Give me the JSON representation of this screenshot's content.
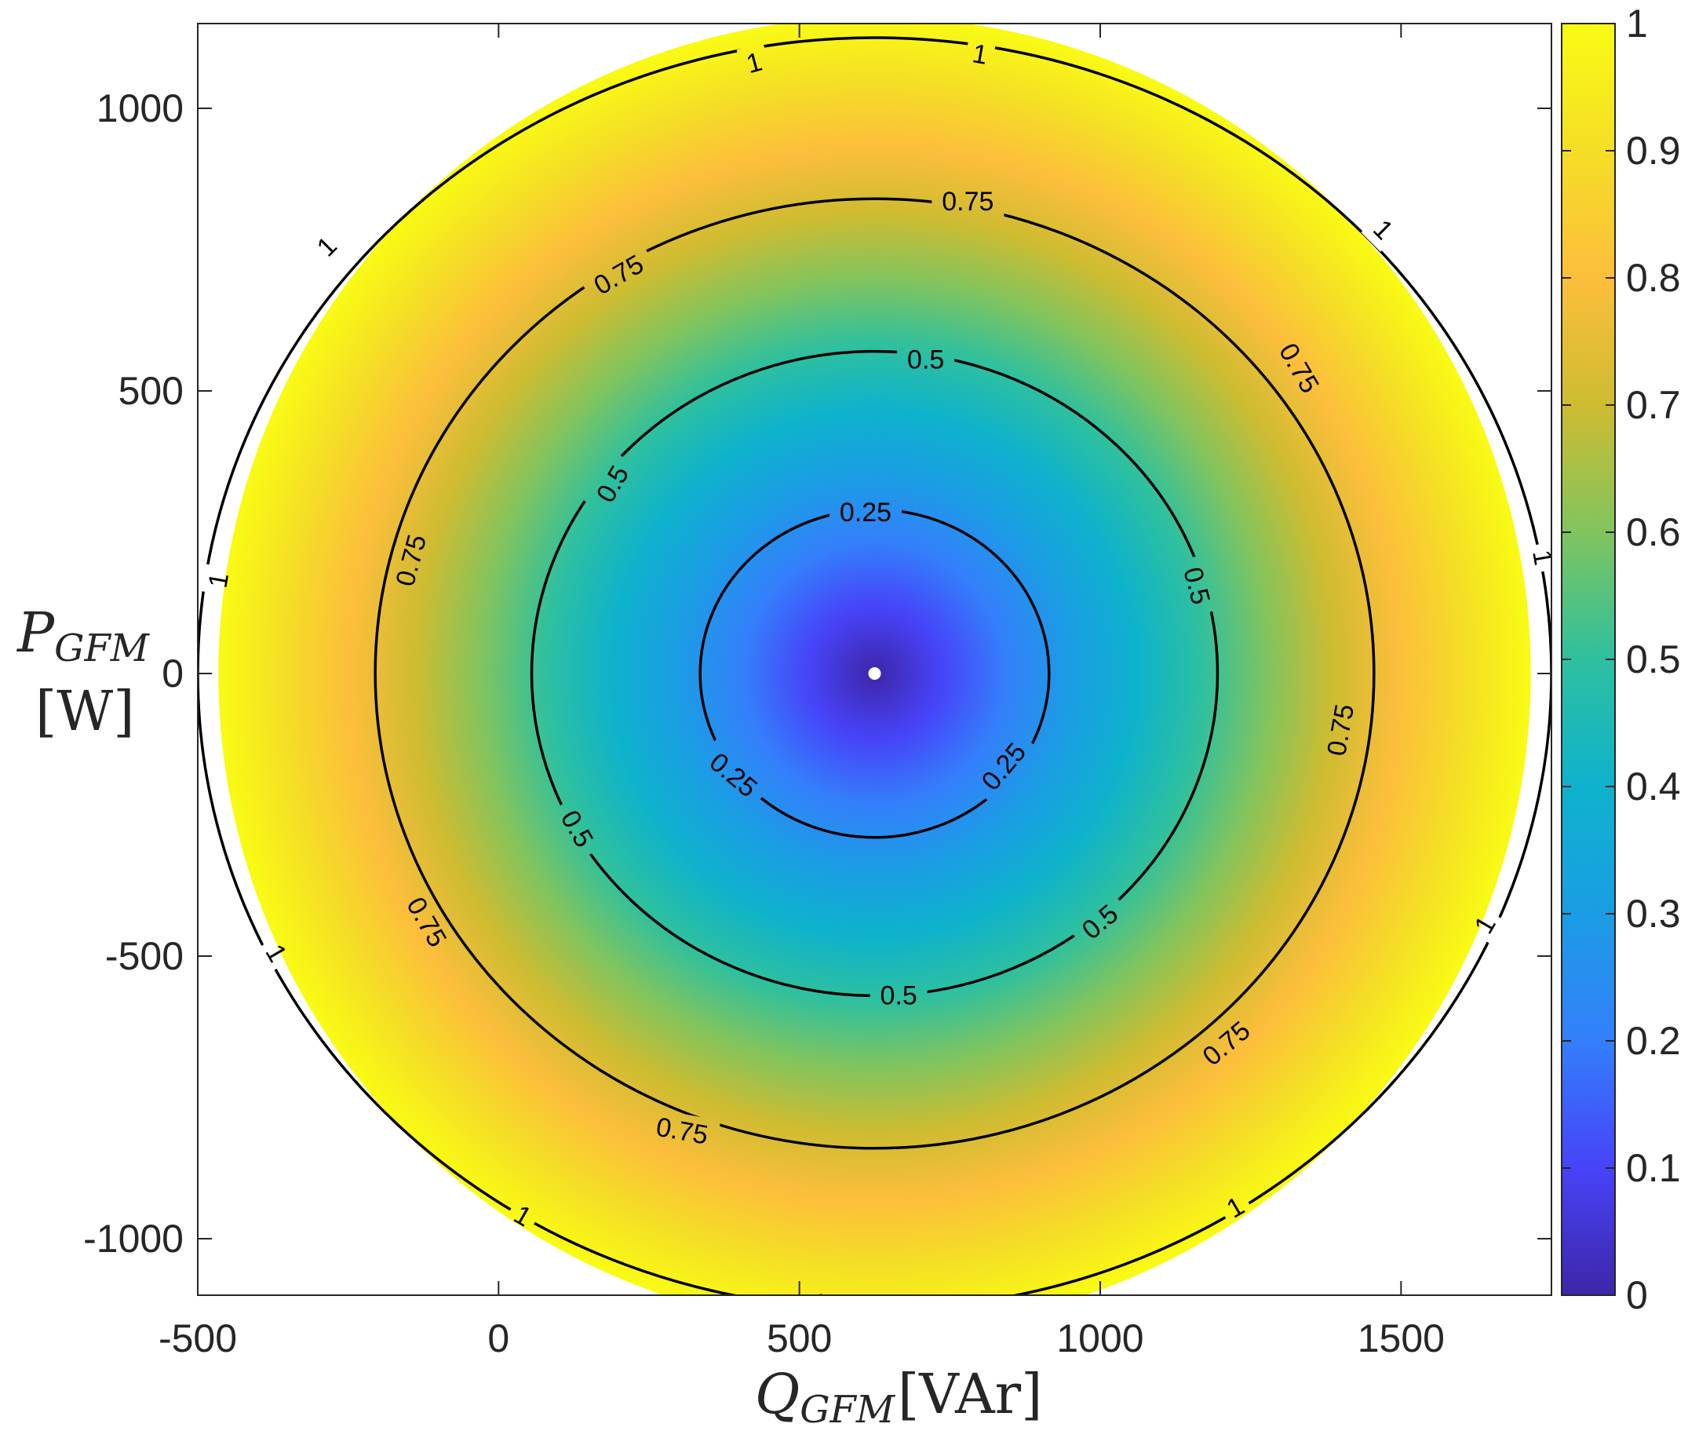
{
  "chart_data": {
    "type": "heatmap",
    "title": "",
    "xlabel": {
      "main": "Q",
      "sub": "GFM",
      "unit": "[VAr]"
    },
    "ylabel": {
      "main": "P",
      "sub": "GFM",
      "unit": "[W]"
    },
    "xlim": [
      -500,
      1750
    ],
    "ylim": [
      -1100,
      1150
    ],
    "xticks": [
      -500,
      0,
      500,
      1000,
      1500
    ],
    "yticks": [
      -1000,
      -500,
      0,
      500,
      1000
    ],
    "xtick_labels": [
      "-500",
      "0",
      "500",
      "1000",
      "1500"
    ],
    "ytick_labels": [
      "-1000",
      "-500",
      "0",
      "500",
      "1000"
    ],
    "center": {
      "x": 625,
      "y": 0
    },
    "circle_radius": 1125,
    "value_range": [
      0,
      1
    ],
    "contours": [
      {
        "level": 0.25,
        "rx": 290,
        "ry": 290,
        "label": "0.25",
        "label_points": [
          {
            "x": 610,
            "y": 285,
            "angle": 0
          },
          {
            "x": 390,
            "y": -180,
            "angle": 40
          },
          {
            "x": 840,
            "y": -165,
            "angle": -50
          }
        ]
      },
      {
        "level": 0.5,
        "rx": 570,
        "ry": 570,
        "label": "0.5",
        "label_points": [
          {
            "x": 710,
            "y": 555,
            "angle": 0
          },
          {
            "x": 190,
            "y": 335,
            "angle": -60
          },
          {
            "x": 1160,
            "y": 155,
            "angle": 75
          },
          {
            "x": 130,
            "y": -275,
            "angle": 60
          },
          {
            "x": 1000,
            "y": -440,
            "angle": -40
          },
          {
            "x": 665,
            "y": -570,
            "angle": 0
          }
        ]
      },
      {
        "level": 0.75,
        "rx": 830,
        "ry": 840,
        "label": "0.75",
        "label_points": [
          {
            "x": 780,
            "y": 835,
            "angle": 0
          },
          {
            "x": 200,
            "y": 705,
            "angle": -30
          },
          {
            "x": 1330,
            "y": 540,
            "angle": 60
          },
          {
            "x": -145,
            "y": 200,
            "angle": -75
          },
          {
            "x": 1400,
            "y": -100,
            "angle": -80
          },
          {
            "x": -120,
            "y": -440,
            "angle": 60
          },
          {
            "x": 1210,
            "y": -655,
            "angle": -40
          },
          {
            "x": 305,
            "y": -810,
            "angle": 10
          }
        ]
      },
      {
        "level": 1,
        "rx": 1125,
        "ry": 1125,
        "label": "1",
        "label_points": [
          {
            "x": 800,
            "y": 1095,
            "angle": 10
          },
          {
            "x": 425,
            "y": 1080,
            "angle": -15
          },
          {
            "x": -285,
            "y": 755,
            "angle": -45
          },
          {
            "x": 1470,
            "y": 785,
            "angle": 45
          },
          {
            "x": -465,
            "y": 165,
            "angle": -80
          },
          {
            "x": 1735,
            "y": 205,
            "angle": 80
          },
          {
            "x": -370,
            "y": -495,
            "angle": 60
          },
          {
            "x": 1640,
            "y": -445,
            "angle": -60
          },
          {
            "x": 535,
            "y": -1115,
            "angle": 0
          },
          {
            "x": 1225,
            "y": -945,
            "angle": -30
          },
          {
            "x": 40,
            "y": -960,
            "angle": 30
          }
        ]
      }
    ],
    "marker": {
      "x": 625,
      "y": 0,
      "color": "#ffffff"
    },
    "colorbar": {
      "ticks": [
        0,
        0.1,
        0.2,
        0.3,
        0.4,
        0.5,
        0.6,
        0.7,
        0.8,
        0.9,
        1
      ],
      "tick_labels": [
        "0",
        "0.1",
        "0.2",
        "0.3",
        "0.4",
        "0.5",
        "0.6",
        "0.7",
        "0.8",
        "0.9",
        "1"
      ],
      "colormap": "parula",
      "colors": [
        "#3e26a8",
        "#4743f8",
        "#347ffb",
        "#1b9de4",
        "#0eb2cc",
        "#2ec09f",
        "#81c45e",
        "#cebc31",
        "#fcbe3c",
        "#f5de26",
        "#f9fb14"
      ]
    }
  }
}
